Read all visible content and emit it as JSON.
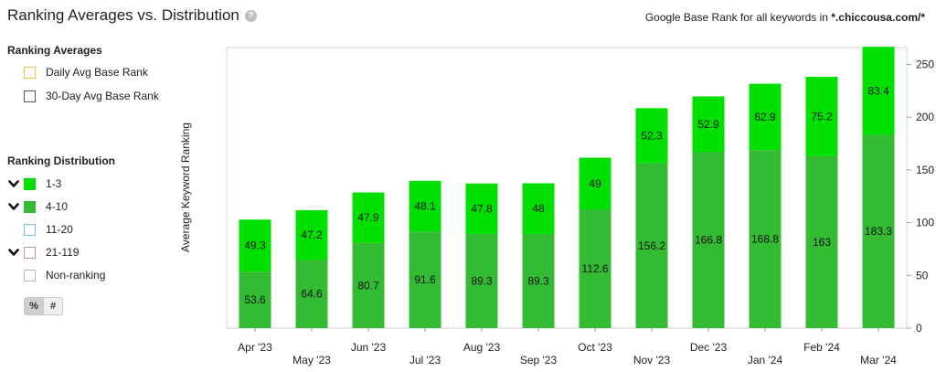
{
  "header": {
    "title": "Ranking Averages vs. Distribution",
    "help_icon": "?",
    "subtitle_prefix": "Google Base Rank for all keywords in ",
    "subtitle_domain": "*.chiccousa.com/*"
  },
  "legend": {
    "averages_title": "Ranking Averages",
    "averages": [
      {
        "label": "Daily Avg Base Rank",
        "color": "#e8c440",
        "filled": false
      },
      {
        "label": "30-Day Avg Base Rank",
        "color": "#555555",
        "filled": false
      }
    ],
    "distribution_title": "Ranking Distribution",
    "distribution": [
      {
        "label": "1-3",
        "color": "#00e000",
        "filled": true,
        "checked": true
      },
      {
        "label": "4-10",
        "color": "#33bb33",
        "filled": true,
        "checked": true
      },
      {
        "label": "11-20",
        "color": "#6ec6de",
        "filled": false,
        "checked": false
      },
      {
        "label": "21-119",
        "color": "#c090b8",
        "filled": false,
        "checked": true
      },
      {
        "label": "Non-ranking",
        "color": "#b8b8b8",
        "filled": false,
        "checked": false
      }
    ],
    "toggle": {
      "percent": "%",
      "count": "#"
    }
  },
  "chart_data": {
    "type": "bar",
    "stacked": true,
    "categories": [
      "Apr '23",
      "May '23",
      "Jun '23",
      "Jul '23",
      "Aug '23",
      "Sep '23",
      "Oct '23",
      "Nov '23",
      "Dec '23",
      "Jan '24",
      "Feb '24",
      "Mar '24"
    ],
    "series": [
      {
        "name": "4-10",
        "color": "#33bb33",
        "values": [
          53.6,
          64.6,
          80.7,
          91.6,
          89.3,
          89.3,
          112.6,
          156.2,
          166.8,
          168.8,
          163,
          183.3
        ]
      },
      {
        "name": "1-3",
        "color": "#00e000",
        "values": [
          49.3,
          47.2,
          47.9,
          48.1,
          47.8,
          48,
          49,
          52.3,
          52.9,
          62.9,
          75.2,
          83.4
        ]
      }
    ],
    "ylabel": "Average Keyword Ranking",
    "ylim": [
      0,
      266
    ],
    "yticks": [
      0,
      50,
      100,
      150,
      200,
      250
    ],
    "yaxis_side": "right",
    "legend": "left"
  }
}
